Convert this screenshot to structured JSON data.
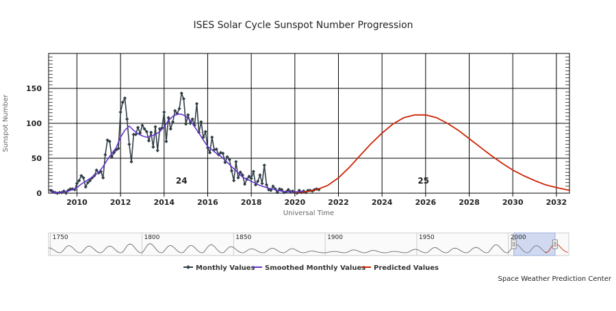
{
  "chart_data": {
    "type": "line",
    "title": "ISES Solar Cycle Sunspot Number Progression",
    "xlabel": "Universal Time",
    "ylabel": "Sunspot Number",
    "xlim": [
      2008.7,
      2032.6
    ],
    "ylim": [
      0,
      200
    ],
    "x_ticks": [
      2010,
      2012,
      2014,
      2016,
      2018,
      2020,
      2022,
      2024,
      2026,
      2028,
      2030,
      2032
    ],
    "y_ticks": [
      0,
      50,
      100,
      150
    ],
    "grid": true,
    "legend_position": "bottom",
    "cycle_labels": [
      {
        "text": "24",
        "x": 2014.8,
        "y": 12
      },
      {
        "text": "25",
        "x": 2025.9,
        "y": 12
      }
    ],
    "series": [
      {
        "name": "Monthly Values",
        "color": "#2f3e46",
        "marker": "diamond",
        "points": [
          [
            2008.8,
            4
          ],
          [
            2008.9,
            2
          ],
          [
            2009.0,
            1
          ],
          [
            2009.1,
            0
          ],
          [
            2009.2,
            1
          ],
          [
            2009.3,
            1
          ],
          [
            2009.4,
            3
          ],
          [
            2009.5,
            0
          ],
          [
            2009.6,
            4
          ],
          [
            2009.7,
            6
          ],
          [
            2009.8,
            6
          ],
          [
            2009.9,
            5
          ],
          [
            2010.0,
            14
          ],
          [
            2010.1,
            18
          ],
          [
            2010.2,
            25
          ],
          [
            2010.3,
            22
          ],
          [
            2010.4,
            9
          ],
          [
            2010.5,
            15
          ],
          [
            2010.6,
            18
          ],
          [
            2010.7,
            22
          ],
          [
            2010.8,
            25
          ],
          [
            2010.9,
            33
          ],
          [
            2011.0,
            29
          ],
          [
            2011.1,
            31
          ],
          [
            2011.2,
            22
          ],
          [
            2011.3,
            55
          ],
          [
            2011.4,
            76
          ],
          [
            2011.5,
            74
          ],
          [
            2011.6,
            52
          ],
          [
            2011.7,
            58
          ],
          [
            2011.8,
            62
          ],
          [
            2011.9,
            64
          ],
          [
            2012.0,
            116
          ],
          [
            2012.1,
            130
          ],
          [
            2012.2,
            136
          ],
          [
            2012.3,
            106
          ],
          [
            2012.4,
            70
          ],
          [
            2012.5,
            45
          ],
          [
            2012.6,
            84
          ],
          [
            2012.7,
            84
          ],
          [
            2012.8,
            94
          ],
          [
            2012.9,
            86
          ],
          [
            2013.0,
            97
          ],
          [
            2013.1,
            92
          ],
          [
            2013.2,
            88
          ],
          [
            2013.3,
            75
          ],
          [
            2013.4,
            87
          ],
          [
            2013.5,
            66
          ],
          [
            2013.6,
            95
          ],
          [
            2013.7,
            61
          ],
          [
            2013.8,
            92
          ],
          [
            2013.9,
            93
          ],
          [
            2014.0,
            116
          ],
          [
            2014.1,
            74
          ],
          [
            2014.2,
            108
          ],
          [
            2014.3,
            92
          ],
          [
            2014.4,
            102
          ],
          [
            2014.5,
            118
          ],
          [
            2014.6,
            114
          ],
          [
            2014.7,
            121
          ],
          [
            2014.8,
            143
          ],
          [
            2014.9,
            135
          ],
          [
            2015.0,
            99
          ],
          [
            2015.1,
            112
          ],
          [
            2015.2,
            100
          ],
          [
            2015.3,
            106
          ],
          [
            2015.4,
            97
          ],
          [
            2015.5,
            128
          ],
          [
            2015.6,
            87
          ],
          [
            2015.7,
            102
          ],
          [
            2015.8,
            80
          ],
          [
            2015.9,
            88
          ],
          [
            2016.0,
            65
          ],
          [
            2016.1,
            58
          ],
          [
            2016.2,
            80
          ],
          [
            2016.3,
            62
          ],
          [
            2016.4,
            63
          ],
          [
            2016.5,
            55
          ],
          [
            2016.6,
            58
          ],
          [
            2016.7,
            57
          ],
          [
            2016.8,
            44
          ],
          [
            2016.9,
            52
          ],
          [
            2017.0,
            48
          ],
          [
            2017.1,
            32
          ],
          [
            2017.2,
            18
          ],
          [
            2017.3,
            45
          ],
          [
            2017.4,
            22
          ],
          [
            2017.5,
            30
          ],
          [
            2017.6,
            26
          ],
          [
            2017.7,
            13
          ],
          [
            2017.8,
            20
          ],
          [
            2017.9,
            24
          ],
          [
            2018.0,
            21
          ],
          [
            2018.1,
            31
          ],
          [
            2018.2,
            12
          ],
          [
            2018.3,
            17
          ],
          [
            2018.4,
            26
          ],
          [
            2018.5,
            14
          ],
          [
            2018.6,
            40
          ],
          [
            2018.7,
            12
          ],
          [
            2018.8,
            5
          ],
          [
            2018.9,
            4
          ],
          [
            2019.0,
            10
          ],
          [
            2019.1,
            6
          ],
          [
            2019.2,
            1
          ],
          [
            2019.3,
            6
          ],
          [
            2019.4,
            5
          ],
          [
            2019.5,
            1
          ],
          [
            2019.6,
            2
          ],
          [
            2019.7,
            5
          ],
          [
            2019.8,
            2
          ],
          [
            2019.9,
            3
          ],
          [
            2020.0,
            1
          ],
          [
            2020.1,
            0
          ],
          [
            2020.2,
            4
          ],
          [
            2020.3,
            1
          ],
          [
            2020.4,
            3
          ],
          [
            2020.5,
            1
          ],
          [
            2020.6,
            4
          ],
          [
            2020.7,
            4
          ],
          [
            2020.8,
            3
          ],
          [
            2020.9,
            5
          ],
          [
            2021.0,
            6
          ],
          [
            2021.1,
            5
          ]
        ]
      },
      {
        "name": "Smoothed Monthly Values",
        "color": "#6633cc",
        "points": [
          [
            2008.8,
            2
          ],
          [
            2009.0,
            1
          ],
          [
            2009.2,
            1
          ],
          [
            2009.4,
            2
          ],
          [
            2009.6,
            3
          ],
          [
            2009.8,
            5
          ],
          [
            2010.0,
            8
          ],
          [
            2010.2,
            13
          ],
          [
            2010.4,
            17
          ],
          [
            2010.6,
            21
          ],
          [
            2010.8,
            25
          ],
          [
            2011.0,
            30
          ],
          [
            2011.2,
            38
          ],
          [
            2011.4,
            48
          ],
          [
            2011.6,
            57
          ],
          [
            2011.8,
            65
          ],
          [
            2012.0,
            80
          ],
          [
            2012.2,
            90
          ],
          [
            2012.4,
            96
          ],
          [
            2012.6,
            90
          ],
          [
            2012.8,
            85
          ],
          [
            2013.0,
            82
          ],
          [
            2013.2,
            80
          ],
          [
            2013.4,
            82
          ],
          [
            2013.6,
            84
          ],
          [
            2013.8,
            88
          ],
          [
            2014.0,
            95
          ],
          [
            2014.2,
            104
          ],
          [
            2014.4,
            110
          ],
          [
            2014.6,
            113
          ],
          [
            2014.8,
            113
          ],
          [
            2015.0,
            110
          ],
          [
            2015.2,
            104
          ],
          [
            2015.4,
            95
          ],
          [
            2015.6,
            86
          ],
          [
            2015.8,
            76
          ],
          [
            2016.0,
            67
          ],
          [
            2016.2,
            62
          ],
          [
            2016.4,
            57
          ],
          [
            2016.6,
            53
          ],
          [
            2016.8,
            47
          ],
          [
            2017.0,
            41
          ],
          [
            2017.2,
            35
          ],
          [
            2017.4,
            29
          ],
          [
            2017.6,
            23
          ],
          [
            2017.8,
            20
          ],
          [
            2018.0,
            17
          ],
          [
            2018.2,
            14
          ],
          [
            2018.4,
            11
          ],
          [
            2018.6,
            9
          ],
          [
            2018.8,
            7
          ],
          [
            2019.0,
            6
          ],
          [
            2019.2,
            4
          ],
          [
            2019.4,
            3
          ],
          [
            2019.6,
            2
          ],
          [
            2019.8,
            2
          ],
          [
            2020.0,
            2
          ],
          [
            2020.2,
            2
          ],
          [
            2020.4,
            3
          ]
        ]
      },
      {
        "name": "Predicted Values",
        "color": "#cc2200",
        "points": [
          [
            2020.0,
            1
          ],
          [
            2020.5,
            2
          ],
          [
            2021.0,
            5
          ],
          [
            2021.5,
            11
          ],
          [
            2022.0,
            22
          ],
          [
            2022.5,
            37
          ],
          [
            2023.0,
            54
          ],
          [
            2023.5,
            71
          ],
          [
            2024.0,
            86
          ],
          [
            2024.5,
            99
          ],
          [
            2025.0,
            108
          ],
          [
            2025.5,
            112
          ],
          [
            2026.0,
            112
          ],
          [
            2026.5,
            108
          ],
          [
            2027.0,
            100
          ],
          [
            2027.5,
            90
          ],
          [
            2028.0,
            78
          ],
          [
            2028.5,
            66
          ],
          [
            2029.0,
            54
          ],
          [
            2029.5,
            43
          ],
          [
            2030.0,
            33
          ],
          [
            2030.5,
            25
          ],
          [
            2031.0,
            18
          ],
          [
            2031.5,
            12
          ],
          [
            2032.0,
            8
          ],
          [
            2032.6,
            4
          ]
        ]
      }
    ]
  },
  "navigator": {
    "labels": [
      "1750",
      "1800",
      "1850",
      "1900",
      "1950",
      "2000"
    ],
    "label_years": [
      1750,
      1800,
      1850,
      1900,
      1950,
      2000
    ],
    "range": [
      1749,
      2033
    ],
    "selected_range": [
      2003,
      2025.5
    ]
  },
  "footer": {
    "credit": "Space Weather Prediction Center"
  }
}
